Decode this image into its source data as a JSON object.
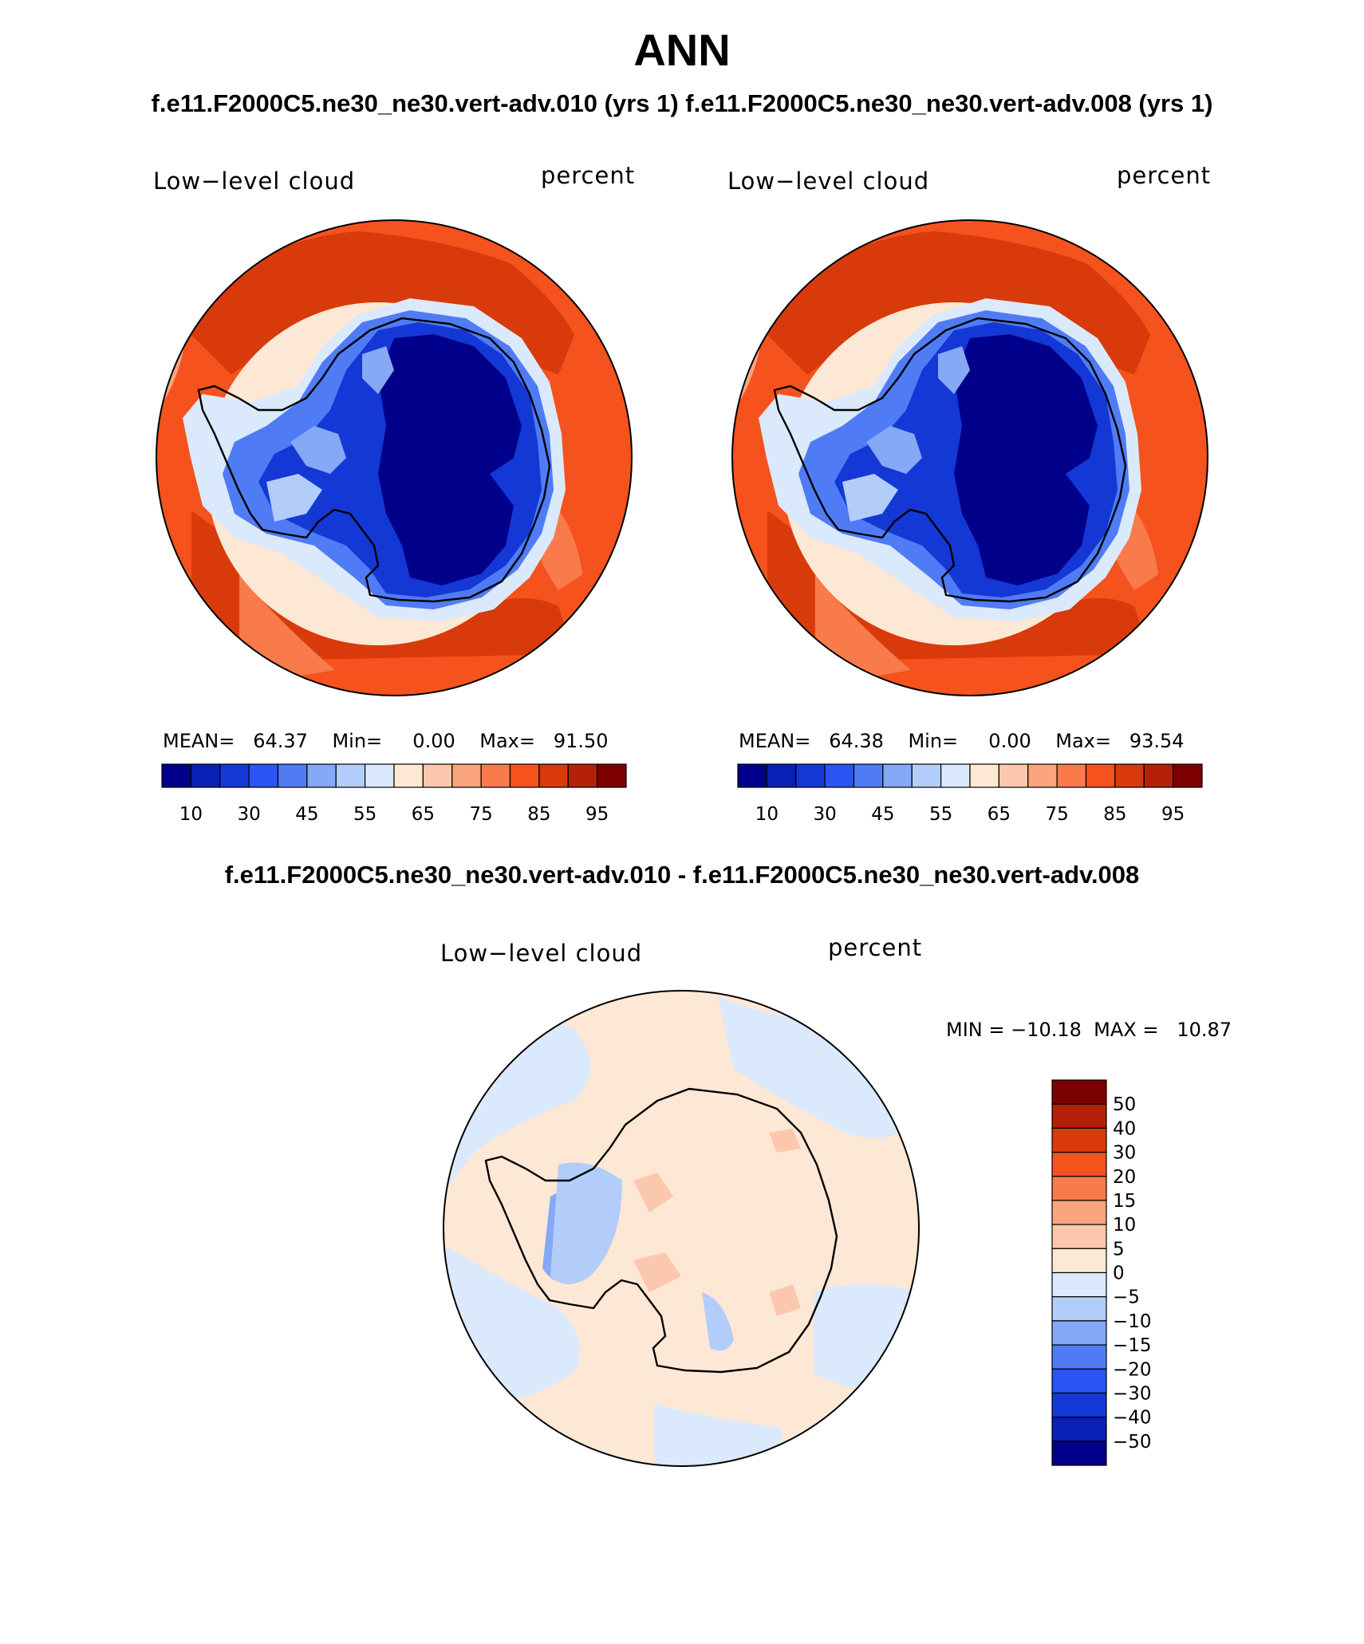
{
  "title": "ANN",
  "subtitle_top": "f.e11.F2000C5.ne30_ne30.vert-adv.010 (yrs 1)  f.e11.F2000C5.ne30_ne30.vert-adv.008 (yrs 1)",
  "subtitle_diff": "f.e11.F2000C5.ne30_ne30.vert-adv.010 - f.e11.F2000C5.ne30_ne30.vert-adv.008",
  "panels": [
    {
      "variable": "Low−level cloud",
      "units": "percent",
      "stats": "MEAN=   64.37    Min=     0.00    Max=   91.50"
    },
    {
      "variable": "Low−level cloud",
      "units": "percent",
      "stats": "MEAN=   64.38    Min=     0.00    Max=   93.54"
    },
    {
      "variable": "Low−level cloud",
      "units": "percent",
      "stats": "MIN = −10.18  MAX =   10.87"
    }
  ],
  "colorbar_main": {
    "colors": [
      "#00008b",
      "#0a1fb4",
      "#1438d6",
      "#2a55f2",
      "#4f7cf5",
      "#85a8f7",
      "#b3cdfb",
      "#dbe9fd",
      "#fde8d5",
      "#fcc8ad",
      "#fba57e",
      "#f97a4b",
      "#f5521e",
      "#d93a0c",
      "#b52008",
      "#7d0000"
    ],
    "labels": [
      "10",
      "30",
      "45",
      "55",
      "65",
      "75",
      "85",
      "95"
    ]
  },
  "colorbar_diff": {
    "colors": [
      "#7d0000",
      "#b52008",
      "#d93a0c",
      "#f5521e",
      "#f97a4b",
      "#fba57e",
      "#fcc8ad",
      "#fde8d5",
      "#dbe9fd",
      "#b3cdfb",
      "#85a8f7",
      "#4f7cf5",
      "#2a55f2",
      "#1438d6",
      "#0a1fb4",
      "#00008b"
    ],
    "labels": [
      "50",
      "40",
      "30",
      "20",
      "15",
      "10",
      "5",
      "0",
      "−5",
      "−10",
      "−15",
      "−20",
      "−30",
      "−40",
      "−50"
    ]
  },
  "colors": {
    "ocean_high": "#f5521e",
    "land_low": "#00008b",
    "diff_pos": "#fde8d5",
    "diff_neg": "#dbe9fd"
  }
}
